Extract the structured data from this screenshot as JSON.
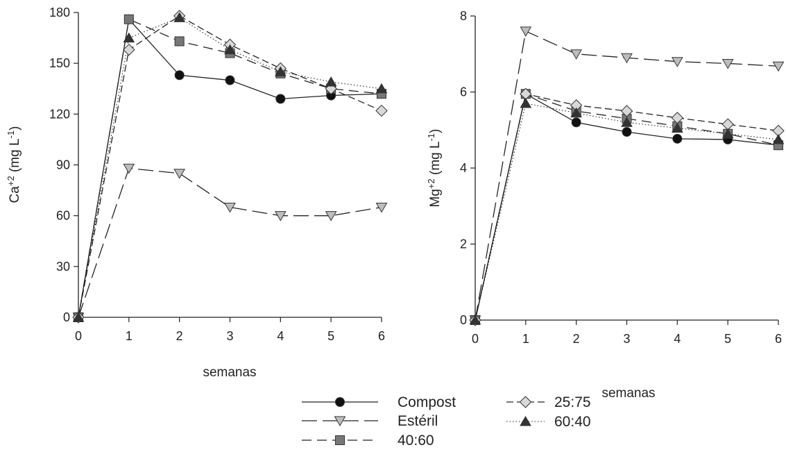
{
  "chart_data": [
    {
      "type": "line",
      "panel": "left",
      "xlabel": "semanas",
      "ylabel": {
        "base": "Ca",
        "sup1": "+2",
        "mid": " (mg L",
        "sup2": "-1",
        "end": ")"
      },
      "xlim": [
        0,
        6
      ],
      "ylim": [
        0,
        180
      ],
      "xticks": [
        0,
        1,
        2,
        3,
        4,
        5,
        6
      ],
      "yticks": [
        0,
        30,
        60,
        90,
        120,
        150,
        180
      ],
      "grid": false,
      "x": [
        0,
        1,
        2,
        3,
        4,
        5,
        6
      ],
      "series": [
        {
          "name": "Compost",
          "values": [
            0,
            176,
            143,
            140,
            129,
            131,
            132
          ]
        },
        {
          "name": "Estéril",
          "values": [
            0,
            88,
            85,
            65,
            60,
            60,
            65
          ]
        },
        {
          "name": "40:60",
          "values": [
            0,
            176,
            163,
            156,
            144,
            135,
            132
          ]
        },
        {
          "name": "25:75",
          "values": [
            0,
            158,
            178,
            161,
            147,
            135,
            122
          ]
        },
        {
          "name": "60:40",
          "values": [
            0,
            165,
            177,
            158,
            145,
            139,
            135
          ]
        }
      ]
    },
    {
      "type": "line",
      "panel": "right",
      "xlabel": "semanas",
      "ylabel": {
        "base": "Mg",
        "sup1": "+2",
        "mid": " (mg L",
        "sup2": "-1",
        "end": ")"
      },
      "xlim": [
        0,
        6
      ],
      "ylim": [
        0,
        8
      ],
      "xticks": [
        0,
        1,
        2,
        3,
        4,
        5,
        6
      ],
      "yticks": [
        0,
        2,
        4,
        6,
        8
      ],
      "grid": false,
      "x": [
        0,
        1,
        2,
        3,
        4,
        5,
        6
      ],
      "series": [
        {
          "name": "Compost",
          "values": [
            0,
            5.95,
            5.2,
            4.95,
            4.77,
            4.75,
            4.6
          ]
        },
        {
          "name": "Estéril",
          "values": [
            0,
            7.6,
            7.0,
            6.9,
            6.8,
            6.75,
            6.68
          ]
        },
        {
          "name": "40:60",
          "values": [
            0,
            5.95,
            5.5,
            5.3,
            5.1,
            4.9,
            4.6
          ]
        },
        {
          "name": "25:75",
          "values": [
            0,
            5.95,
            5.65,
            5.5,
            5.32,
            5.15,
            4.98
          ]
        },
        {
          "name": "60:40",
          "values": [
            0,
            5.7,
            5.45,
            5.2,
            5.05,
            4.9,
            4.75
          ]
        }
      ]
    }
  ],
  "legend": {
    "placement": "bottom-center",
    "entries": [
      {
        "name": "Compost",
        "marker": "circle",
        "fill": "#111111",
        "dash": "",
        "column": 0
      },
      {
        "name": "Estéril",
        "marker": "triangle-down",
        "fill": "#bdbdbd",
        "dash": "22 8",
        "column": 0
      },
      {
        "name": "40:60",
        "marker": "square",
        "fill": "#777777",
        "dash": "14 8",
        "column": 0
      },
      {
        "name": "25:75",
        "marker": "diamond",
        "fill": "#d8d8d8",
        "dash": "10 5",
        "column": 1
      },
      {
        "name": "60:40",
        "marker": "triangle-up",
        "fill": "#333333",
        "dash": "1.5 3",
        "column": 1
      }
    ]
  },
  "colors": {
    "line": "#222222",
    "axis": "#222222",
    "marker_stroke": "#333333"
  }
}
